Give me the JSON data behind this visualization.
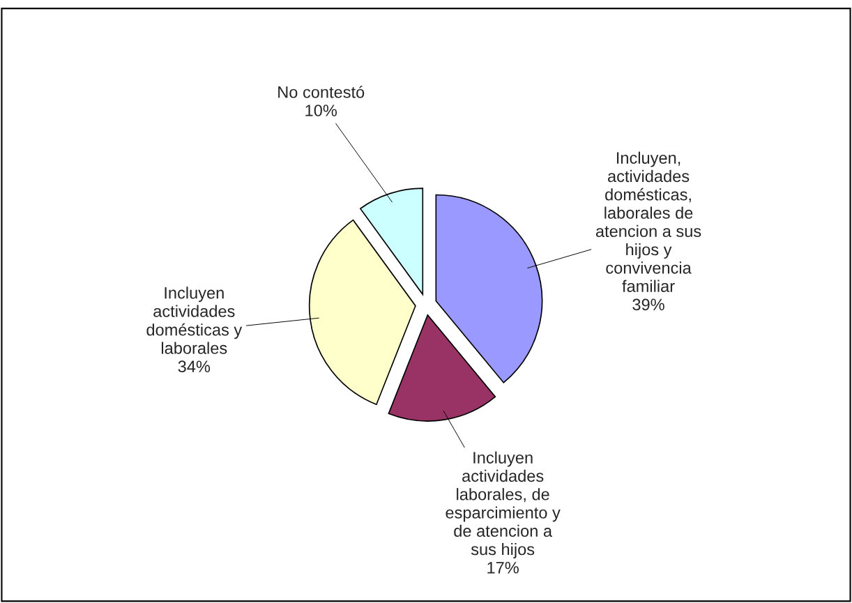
{
  "chart_data": {
    "type": "pie",
    "categories": [
      "Incluyen,\nactividades\ndomésticas,\nlaborales de\natencion a sus\nhijos y\nconvivencia\nfamiliar",
      "Incluyen\nactividades\nlaborales, de\nesparcimiento y\nde atencion a\nsus hijos",
      "Incluyen\nactividades\ndomésticas y\nlaborales",
      "No contestó"
    ],
    "values": [
      39,
      17,
      34,
      10
    ],
    "colors": [
      "#9999ff",
      "#993366",
      "#ffffcc",
      "#ccffff"
    ],
    "value_labels": [
      "39%",
      "17%",
      "34%",
      "10%"
    ],
    "legend": false
  }
}
